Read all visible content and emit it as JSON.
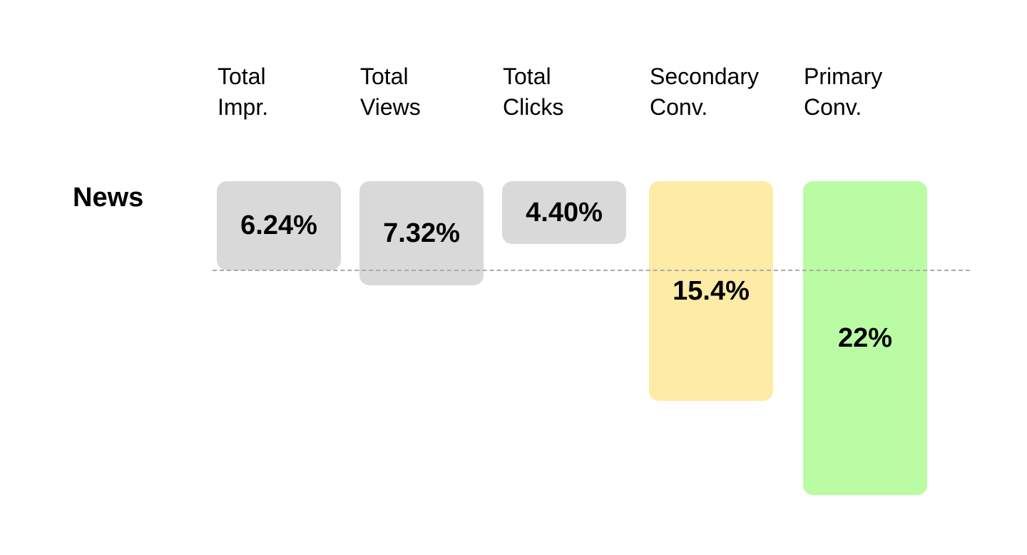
{
  "chart_data": {
    "type": "bar",
    "categories": [
      "Total Impr.",
      "Total Views",
      "Total Clicks",
      "Secondary Conv.",
      "Primary Conv."
    ],
    "series": [
      {
        "name": "News",
        "values": [
          6.24,
          7.32,
          4.4,
          15.4,
          22
        ],
        "value_labels": [
          "6.24%",
          "7.32%",
          "4.40%",
          "15.4%",
          "22%"
        ],
        "colors": [
          "#d9d9d9",
          "#d9d9d9",
          "#d9d9d9",
          "#feeba5",
          "#b9fca4"
        ]
      }
    ]
  }
}
